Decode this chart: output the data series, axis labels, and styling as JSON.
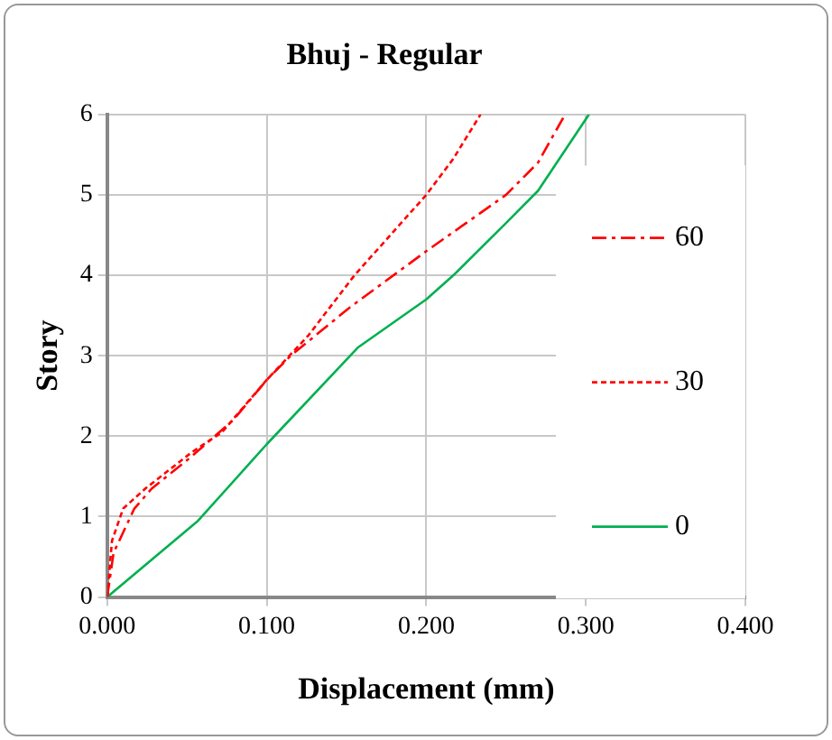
{
  "chart_data": {
    "type": "line",
    "title": "Bhuj - Regular",
    "xlabel": "Displacement (mm)",
    "ylabel": "Story",
    "xlim": [
      0,
      0.4
    ],
    "xticks": [
      {
        "value": 0,
        "label": "0.000"
      },
      {
        "value": 0.1,
        "label": "0.100"
      },
      {
        "value": 0.2,
        "label": "0.200"
      },
      {
        "value": 0.3,
        "label": "0.300"
      },
      {
        "value": 0.4,
        "label": "0.400"
      }
    ],
    "ylim": [
      0,
      6
    ],
    "yticks": [
      0,
      1,
      2,
      3,
      4,
      5,
      6
    ],
    "grid": true,
    "legend": "right",
    "marker": "none",
    "series": [
      {
        "name": "60",
        "color": "#ff0000",
        "line_style": "dashdot",
        "x": [
          0,
          0.004,
          0.017,
          0.028,
          0.053,
          0.079,
          0.1,
          0.115,
          0.152,
          0.2,
          0.25,
          0.27,
          0.287
        ],
        "values": [
          0,
          0.55,
          1.1,
          1.35,
          1.75,
          2.2,
          2.7,
          3.0,
          3.6,
          4.3,
          5.0,
          5.4,
          6
        ]
      },
      {
        "name": "30",
        "color": "#ff0000",
        "line_style": "dashed",
        "x": [
          0,
          0.003,
          0.01,
          0.024,
          0.053,
          0.072,
          0.1,
          0.126,
          0.155,
          0.2,
          0.217,
          0.234
        ],
        "values": [
          0,
          0.7,
          1.1,
          1.35,
          1.8,
          2.05,
          2.7,
          3.25,
          4.0,
          5.0,
          5.45,
          6
        ]
      },
      {
        "name": "0",
        "color": "#00b050",
        "line_style": "solid",
        "x": [
          0,
          0.057,
          0.1,
          0.157,
          0.2,
          0.217,
          0.25,
          0.27,
          0.302
        ],
        "values": [
          0,
          0.95,
          1.9,
          3.1,
          3.7,
          4.0,
          4.65,
          5.05,
          6
        ]
      }
    ]
  }
}
